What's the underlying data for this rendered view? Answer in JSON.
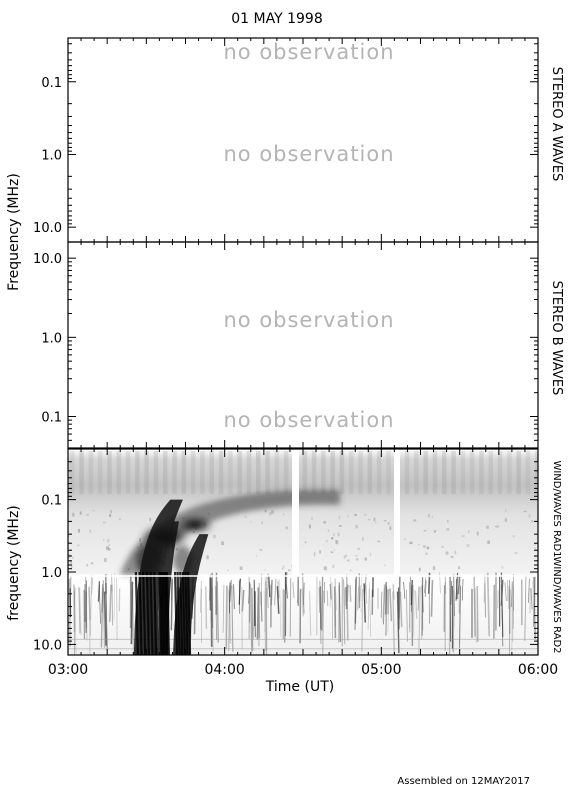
{
  "date_title": "01 MAY 1998",
  "footer": "Assembled on 12MAY2017",
  "no_obs_text": "no observation",
  "chart_data": [
    {
      "type": "heatmap",
      "panel": "stereo-a",
      "right_label": "STEREO A WAVES",
      "yscale": "log",
      "y_inverted": true,
      "ylim_mhz": [
        0.025,
        16
      ],
      "yticks": [
        {
          "v": 0.1,
          "label": "0.1"
        },
        {
          "v": 1.0,
          "label": "1.0"
        },
        {
          "v": 10.0,
          "label": "10.0"
        }
      ],
      "annotations": [
        {
          "text": "no observation",
          "freq_mhz": 0.1
        },
        {
          "text": "no observation",
          "freq_mhz": 1.0
        }
      ],
      "status": "no observation"
    },
    {
      "type": "heatmap",
      "panel": "stereo-b",
      "right_label": "STEREO B WAVES",
      "yscale": "log",
      "y_inverted": false,
      "ylim_mhz": [
        0.04,
        16
      ],
      "yticks": [
        {
          "v": 10.0,
          "label": "10.0"
        },
        {
          "v": 1.0,
          "label": "1.0"
        },
        {
          "v": 0.1,
          "label": "0.1"
        }
      ],
      "annotations": [
        {
          "text": "no observation",
          "freq_mhz": 1.0
        },
        {
          "text": "no observation",
          "freq_mhz": 0.1
        }
      ],
      "status": "no observation"
    },
    {
      "type": "heatmap",
      "panel": "wind",
      "right_label_top": "WIND/WAVES RAD1",
      "right_label_bottom": "WIND/WAVES RAD2",
      "ylabel": "frequency (MHz)",
      "yscale": "log",
      "y_inverted": true,
      "ylim_mhz": [
        0.02,
        14
      ],
      "band_boundary_mhz": 1.0,
      "yticks": [
        {
          "v": 0.1,
          "label": "0.1"
        },
        {
          "v": 1.0,
          "label": "1.0"
        },
        {
          "v": 10.0,
          "label": "10.0"
        }
      ],
      "features": [
        {
          "kind": "type_iii_drift",
          "start_time": "03:26",
          "end_time": "03:50",
          "freq_range_mhz": [
            0.1,
            14
          ]
        },
        {
          "kind": "type_iii_drift",
          "start_time": "03:35",
          "end_time": "03:45",
          "freq_range_mhz": [
            0.2,
            14
          ]
        },
        {
          "kind": "type_iii_drift",
          "start_time": "03:41",
          "end_time": "03:58",
          "freq_range_mhz": [
            0.3,
            14
          ]
        },
        {
          "kind": "data_gap",
          "time": "04:27"
        },
        {
          "kind": "data_gap",
          "time": "05:09"
        }
      ]
    }
  ],
  "x_axis": {
    "xlabel": "Time (UT)",
    "ticks": [
      "03:00",
      "04:00",
      "05:00",
      "06:00"
    ],
    "xlim": [
      "03:00",
      "06:00"
    ]
  },
  "shared_ylabel": "Frequency (MHz)"
}
